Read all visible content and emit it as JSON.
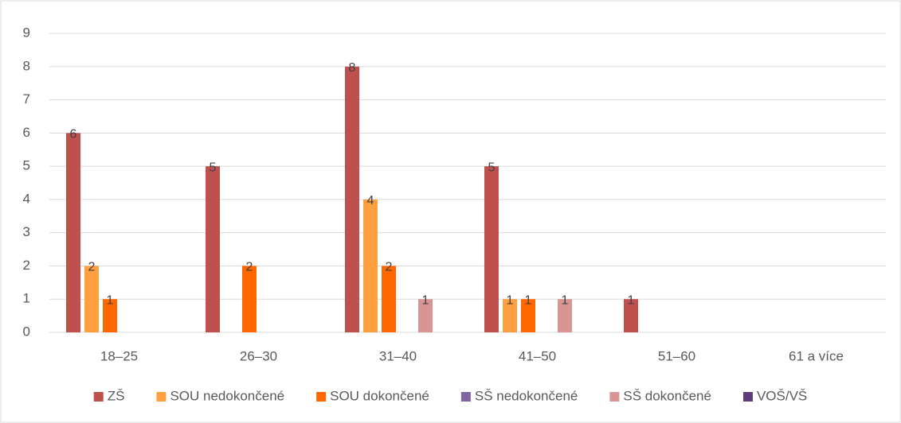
{
  "chart_data": {
    "type": "bar",
    "categories": [
      "18–25",
      "26–30",
      "31–40",
      "41–50",
      "51–60",
      "61 a více"
    ],
    "series": [
      {
        "name": "ZŠ",
        "color": "#c0504d",
        "values": [
          6,
          5,
          8,
          5,
          1,
          0
        ]
      },
      {
        "name": "SOU nedokončené",
        "color": "#ffa040",
        "values": [
          2,
          0,
          4,
          1,
          0,
          0
        ]
      },
      {
        "name": "SOU dokončené",
        "color": "#ff6600",
        "values": [
          1,
          2,
          2,
          1,
          0,
          0
        ]
      },
      {
        "name": "SŠ nedokončené",
        "color": "#8064a2",
        "values": [
          0,
          0,
          0,
          0,
          0,
          0
        ]
      },
      {
        "name": "SŠ dokončené",
        "color": "#d99594",
        "values": [
          0,
          0,
          1,
          1,
          0,
          0
        ]
      },
      {
        "name": "VOŠ/VŠ",
        "color": "#5f3d7a",
        "values": [
          0,
          0,
          0,
          0,
          0,
          0
        ]
      }
    ],
    "ylim": [
      0,
      9
    ],
    "yticks": [
      0,
      1,
      2,
      3,
      4,
      5,
      6,
      7,
      8,
      9
    ],
    "grid": true,
    "legend": "bottom"
  }
}
